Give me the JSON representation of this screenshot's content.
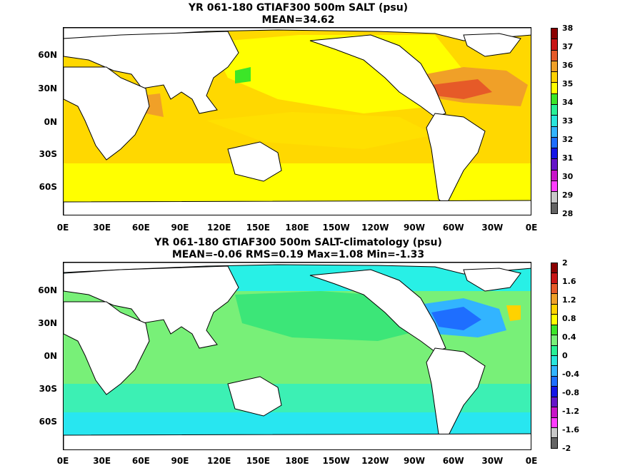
{
  "maps": [
    {
      "title": "YR 061-180 GTIAF300 500m SALT (psu)",
      "subtitle": "MEAN=34.62",
      "lat_labels": [
        "60N",
        "30N",
        "0N",
        "30S",
        "60S"
      ],
      "lon_labels": [
        "0E",
        "30E",
        "60E",
        "90E",
        "120E",
        "150E",
        "180E",
        "150W",
        "120W",
        "90W",
        "60W",
        "30W",
        "0E"
      ],
      "colorbar_ticks": [
        "38",
        "37",
        "36",
        "35",
        "34",
        "33",
        "32",
        "31",
        "30",
        "29",
        "28"
      ],
      "colorbar_colors": [
        "#8b0000",
        "#c81414",
        "#e65a28",
        "#f0a028",
        "#ffd200",
        "#ffff00",
        "#3ce628",
        "#28f096",
        "#28e6dc",
        "#32b4ff",
        "#1e6eff",
        "#1414e6",
        "#6414c8",
        "#c814c8",
        "#ff3cff",
        "#c8c8c8",
        "#646464"
      ],
      "ocean_base": "#ffd800",
      "land_color": "#ffffff"
    },
    {
      "title": "YR 061-180 GTIAF300 500m SALT-climatology (psu)",
      "subtitle": "MEAN=-0.06   RMS=0.19   Max=1.08   Min=-1.33",
      "lat_labels": [
        "60N",
        "30N",
        "0N",
        "30S",
        "60S"
      ],
      "lon_labels": [
        "0E",
        "30E",
        "60E",
        "90E",
        "120E",
        "150E",
        "180E",
        "150W",
        "120W",
        "90W",
        "60W",
        "30W",
        "0E"
      ],
      "colorbar_ticks": [
        "2",
        "1.6",
        "1.2",
        "0.8",
        "0.4",
        "0",
        "-0.4",
        "-0.8",
        "-1.2",
        "-1.6",
        "-2"
      ],
      "colorbar_colors": [
        "#8b0000",
        "#c81414",
        "#e65a28",
        "#f0a028",
        "#ffd200",
        "#ffff00",
        "#3ce628",
        "#78f078",
        "#28f096",
        "#28e6dc",
        "#32b4ff",
        "#1e6eff",
        "#1414e6",
        "#6414c8",
        "#c814c8",
        "#ff3cff",
        "#c8c8c8",
        "#646464"
      ],
      "ocean_base": "#78f078",
      "land_color": "#ffffff"
    }
  ]
}
